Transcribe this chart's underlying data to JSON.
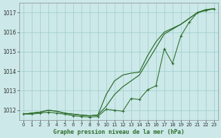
{
  "title": "Graphe pression niveau de la mer (hPa)",
  "bg_color": "#cce8e8",
  "grid_color": "#99cccc",
  "line_color": "#2d6e2d",
  "xlim": [
    -0.5,
    23.5
  ],
  "ylim": [
    1011.5,
    1017.5
  ],
  "xticks": [
    0,
    1,
    2,
    3,
    4,
    5,
    6,
    7,
    8,
    9,
    10,
    11,
    12,
    13,
    14,
    15,
    16,
    17,
    18,
    19,
    20,
    21,
    22,
    23
  ],
  "yticks": [
    1012,
    1013,
    1014,
    1015,
    1016,
    1017
  ],
  "hours": [
    0,
    1,
    2,
    3,
    4,
    5,
    6,
    7,
    8,
    9,
    10,
    11,
    12,
    13,
    14,
    15,
    16,
    17,
    18,
    19,
    20,
    21,
    22,
    23
  ],
  "line_smooth1": [
    1011.8,
    1011.85,
    1011.9,
    1012.0,
    1011.95,
    1011.85,
    1011.8,
    1011.75,
    1011.72,
    1011.75,
    1012.8,
    1013.5,
    1013.8,
    1013.9,
    1013.95,
    1014.8,
    1015.5,
    1016.0,
    1016.2,
    1016.4,
    1016.7,
    1017.0,
    1017.15,
    1017.2
  ],
  "line_smooth2": [
    1011.8,
    1011.85,
    1011.9,
    1012.0,
    1011.95,
    1011.85,
    1011.8,
    1011.75,
    1011.72,
    1011.75,
    1012.2,
    1012.8,
    1013.2,
    1013.5,
    1013.8,
    1014.5,
    1015.2,
    1015.9,
    1016.15,
    1016.4,
    1016.7,
    1017.0,
    1017.15,
    1017.2
  ],
  "line_noisy": [
    1011.8,
    1011.8,
    1011.85,
    1011.9,
    1011.85,
    1011.8,
    1011.72,
    1011.68,
    1011.65,
    1011.68,
    1012.05,
    1012.0,
    1011.95,
    1012.6,
    1012.55,
    1013.05,
    1013.25,
    1015.15,
    1014.4,
    1015.8,
    1016.5,
    1017.0,
    1017.1,
    1017.2
  ]
}
